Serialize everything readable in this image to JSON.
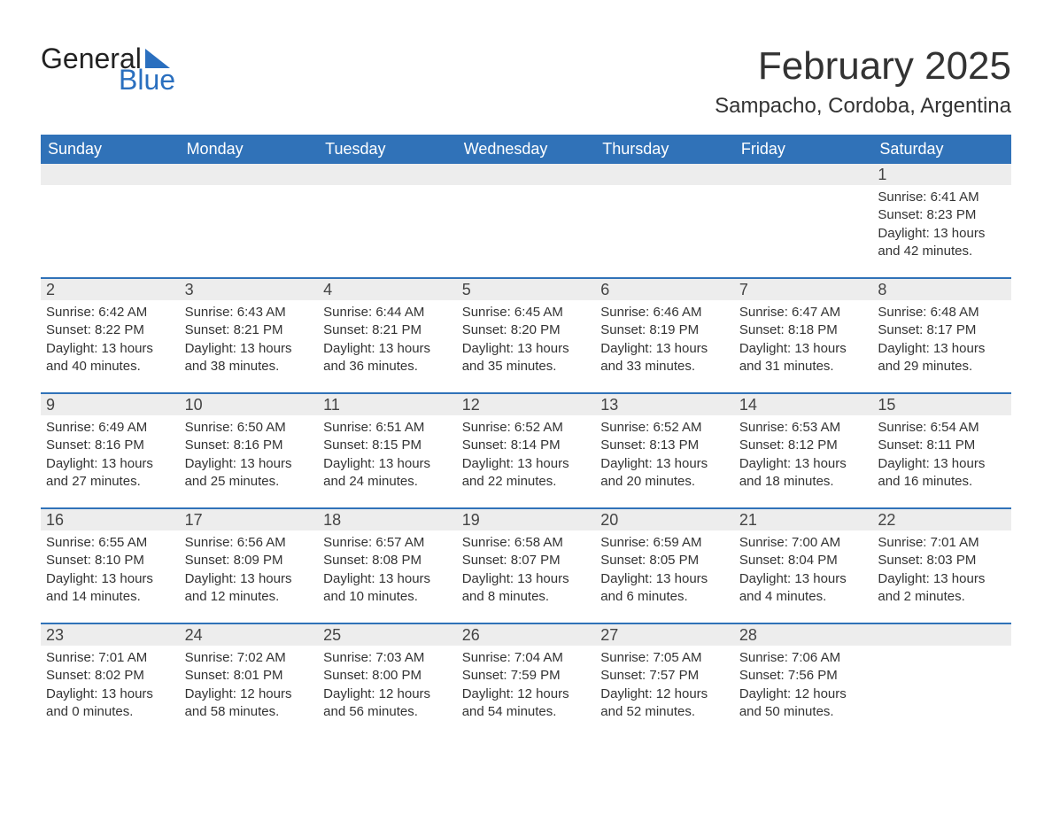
{
  "logo": {
    "general": "General",
    "blue": "Blue",
    "triangle_color": "#2a6fbf"
  },
  "title": "February 2025",
  "location": "Sampacho, Cordoba, Argentina",
  "colors": {
    "header_bg": "#3072b8",
    "header_text": "#ffffff",
    "daynum_bg": "#ededed",
    "week_divider": "#3072b8",
    "text": "#333333"
  },
  "day_names": [
    "Sunday",
    "Monday",
    "Tuesday",
    "Wednesday",
    "Thursday",
    "Friday",
    "Saturday"
  ],
  "weeks": [
    [
      {
        "empty": true
      },
      {
        "empty": true
      },
      {
        "empty": true
      },
      {
        "empty": true
      },
      {
        "empty": true
      },
      {
        "empty": true
      },
      {
        "day": "1",
        "sunrise": "6:41 AM",
        "sunset": "8:23 PM",
        "daylight": "13 hours and 42 minutes."
      }
    ],
    [
      {
        "day": "2",
        "sunrise": "6:42 AM",
        "sunset": "8:22 PM",
        "daylight": "13 hours and 40 minutes."
      },
      {
        "day": "3",
        "sunrise": "6:43 AM",
        "sunset": "8:21 PM",
        "daylight": "13 hours and 38 minutes."
      },
      {
        "day": "4",
        "sunrise": "6:44 AM",
        "sunset": "8:21 PM",
        "daylight": "13 hours and 36 minutes."
      },
      {
        "day": "5",
        "sunrise": "6:45 AM",
        "sunset": "8:20 PM",
        "daylight": "13 hours and 35 minutes."
      },
      {
        "day": "6",
        "sunrise": "6:46 AM",
        "sunset": "8:19 PM",
        "daylight": "13 hours and 33 minutes."
      },
      {
        "day": "7",
        "sunrise": "6:47 AM",
        "sunset": "8:18 PM",
        "daylight": "13 hours and 31 minutes."
      },
      {
        "day": "8",
        "sunrise": "6:48 AM",
        "sunset": "8:17 PM",
        "daylight": "13 hours and 29 minutes."
      }
    ],
    [
      {
        "day": "9",
        "sunrise": "6:49 AM",
        "sunset": "8:16 PM",
        "daylight": "13 hours and 27 minutes."
      },
      {
        "day": "10",
        "sunrise": "6:50 AM",
        "sunset": "8:16 PM",
        "daylight": "13 hours and 25 minutes."
      },
      {
        "day": "11",
        "sunrise": "6:51 AM",
        "sunset": "8:15 PM",
        "daylight": "13 hours and 24 minutes."
      },
      {
        "day": "12",
        "sunrise": "6:52 AM",
        "sunset": "8:14 PM",
        "daylight": "13 hours and 22 minutes."
      },
      {
        "day": "13",
        "sunrise": "6:52 AM",
        "sunset": "8:13 PM",
        "daylight": "13 hours and 20 minutes."
      },
      {
        "day": "14",
        "sunrise": "6:53 AM",
        "sunset": "8:12 PM",
        "daylight": "13 hours and 18 minutes."
      },
      {
        "day": "15",
        "sunrise": "6:54 AM",
        "sunset": "8:11 PM",
        "daylight": "13 hours and 16 minutes."
      }
    ],
    [
      {
        "day": "16",
        "sunrise": "6:55 AM",
        "sunset": "8:10 PM",
        "daylight": "13 hours and 14 minutes."
      },
      {
        "day": "17",
        "sunrise": "6:56 AM",
        "sunset": "8:09 PM",
        "daylight": "13 hours and 12 minutes."
      },
      {
        "day": "18",
        "sunrise": "6:57 AM",
        "sunset": "8:08 PM",
        "daylight": "13 hours and 10 minutes."
      },
      {
        "day": "19",
        "sunrise": "6:58 AM",
        "sunset": "8:07 PM",
        "daylight": "13 hours and 8 minutes."
      },
      {
        "day": "20",
        "sunrise": "6:59 AM",
        "sunset": "8:05 PM",
        "daylight": "13 hours and 6 minutes."
      },
      {
        "day": "21",
        "sunrise": "7:00 AM",
        "sunset": "8:04 PM",
        "daylight": "13 hours and 4 minutes."
      },
      {
        "day": "22",
        "sunrise": "7:01 AM",
        "sunset": "8:03 PM",
        "daylight": "13 hours and 2 minutes."
      }
    ],
    [
      {
        "day": "23",
        "sunrise": "7:01 AM",
        "sunset": "8:02 PM",
        "daylight": "13 hours and 0 minutes."
      },
      {
        "day": "24",
        "sunrise": "7:02 AM",
        "sunset": "8:01 PM",
        "daylight": "12 hours and 58 minutes."
      },
      {
        "day": "25",
        "sunrise": "7:03 AM",
        "sunset": "8:00 PM",
        "daylight": "12 hours and 56 minutes."
      },
      {
        "day": "26",
        "sunrise": "7:04 AM",
        "sunset": "7:59 PM",
        "daylight": "12 hours and 54 minutes."
      },
      {
        "day": "27",
        "sunrise": "7:05 AM",
        "sunset": "7:57 PM",
        "daylight": "12 hours and 52 minutes."
      },
      {
        "day": "28",
        "sunrise": "7:06 AM",
        "sunset": "7:56 PM",
        "daylight": "12 hours and 50 minutes."
      },
      {
        "empty": true
      }
    ]
  ],
  "labels": {
    "sunrise": "Sunrise: ",
    "sunset": "Sunset: ",
    "daylight": "Daylight: "
  }
}
